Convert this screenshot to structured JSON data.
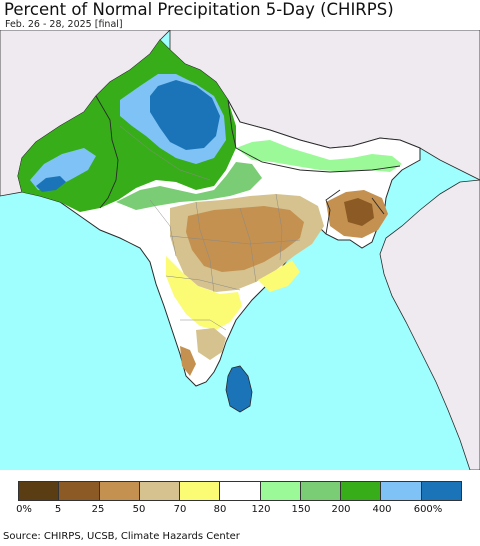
{
  "title": "Percent of Normal Precipitation 5-Day (CHIRPS)",
  "subtitle": "Feb. 26 - 28, 2025 [final]",
  "source": "Source: CHIRPS, UCSB, Climate Hazards Center",
  "legend": {
    "colors": [
      "#5a3d12",
      "#8c5a24",
      "#c49150",
      "#d6c28e",
      "#fcfb74",
      "#ffffff",
      "#9bfa97",
      "#7acd75",
      "#37ad1a",
      "#7fc3f6",
      "#1c74b8"
    ],
    "labels": [
      "0%",
      "5",
      "25",
      "50",
      "70",
      "80",
      "120",
      "150",
      "200",
      "400",
      "600%"
    ]
  },
  "colors": {
    "ocean": "#9ffefe",
    "outside_land": "#efeaf0",
    "border": "#2a2a2a"
  }
}
